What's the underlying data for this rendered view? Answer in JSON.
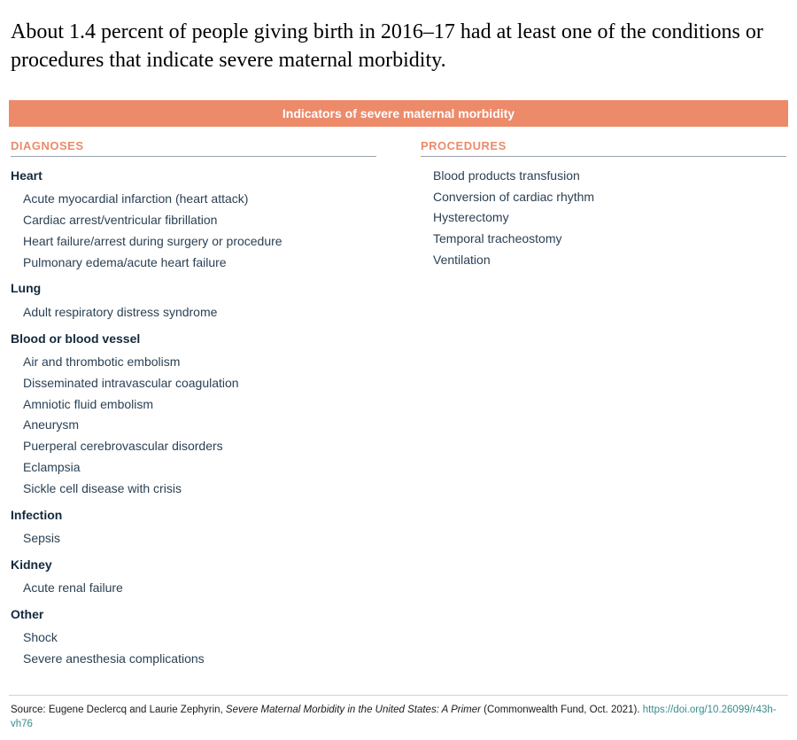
{
  "headline": "About 1.4 percent of people giving birth in 2016–17 had at least one of the conditions or procedures that indicate severe maternal morbidity.",
  "banner": "Indicators of severe maternal morbidity",
  "colors": {
    "accent": "#ed8a6a",
    "text_dark": "#142a3d",
    "text_item": "#2b4154",
    "rule": "#cfd3d6",
    "link": "#3a8b8c",
    "background": "#ffffff"
  },
  "typography": {
    "headline_family": "Georgia, serif",
    "headline_size_pt": 18,
    "body_family": "sans-serif",
    "col_header_size_pt": 10,
    "item_size_pt": 10.5,
    "source_size_pt": 8.5
  },
  "diagnoses": {
    "header": "DIAGNOSES",
    "groups": [
      {
        "title": "Heart",
        "items": [
          "Acute myocardial infarction (heart attack)",
          "Cardiac arrest/ventricular fibrillation",
          "Heart failure/arrest during surgery or procedure",
          "Pulmonary edema/acute heart failure"
        ]
      },
      {
        "title": "Lung",
        "items": [
          "Adult respiratory distress syndrome"
        ]
      },
      {
        "title": "Blood or blood vessel",
        "items": [
          "Air and thrombotic embolism",
          "Disseminated intravascular coagulation",
          "Amniotic fluid embolism",
          "Aneurysm",
          "Puerperal cerebrovascular disorders",
          "Eclampsia",
          "Sickle cell disease with crisis"
        ]
      },
      {
        "title": "Infection",
        "items": [
          "Sepsis"
        ]
      },
      {
        "title": "Kidney",
        "items": [
          "Acute renal failure"
        ]
      },
      {
        "title": "Other",
        "items": [
          "Shock",
          "Severe anesthesia complications"
        ]
      }
    ]
  },
  "procedures": {
    "header": "PROCEDURES",
    "items": [
      "Blood products transfusion",
      "Conversion of cardiac rhythm",
      "Hysterectomy",
      "Temporal tracheostomy",
      "Ventilation"
    ]
  },
  "source": {
    "prefix": "Source: Eugene Declercq and Laurie Zephyrin, ",
    "title_italic": "Severe Maternal Morbidity in the United States: A Primer",
    "suffix": " (Commonwealth Fund, Oct. 2021). ",
    "link_text": "https://doi.org/10.26099/r43h-vh76"
  }
}
